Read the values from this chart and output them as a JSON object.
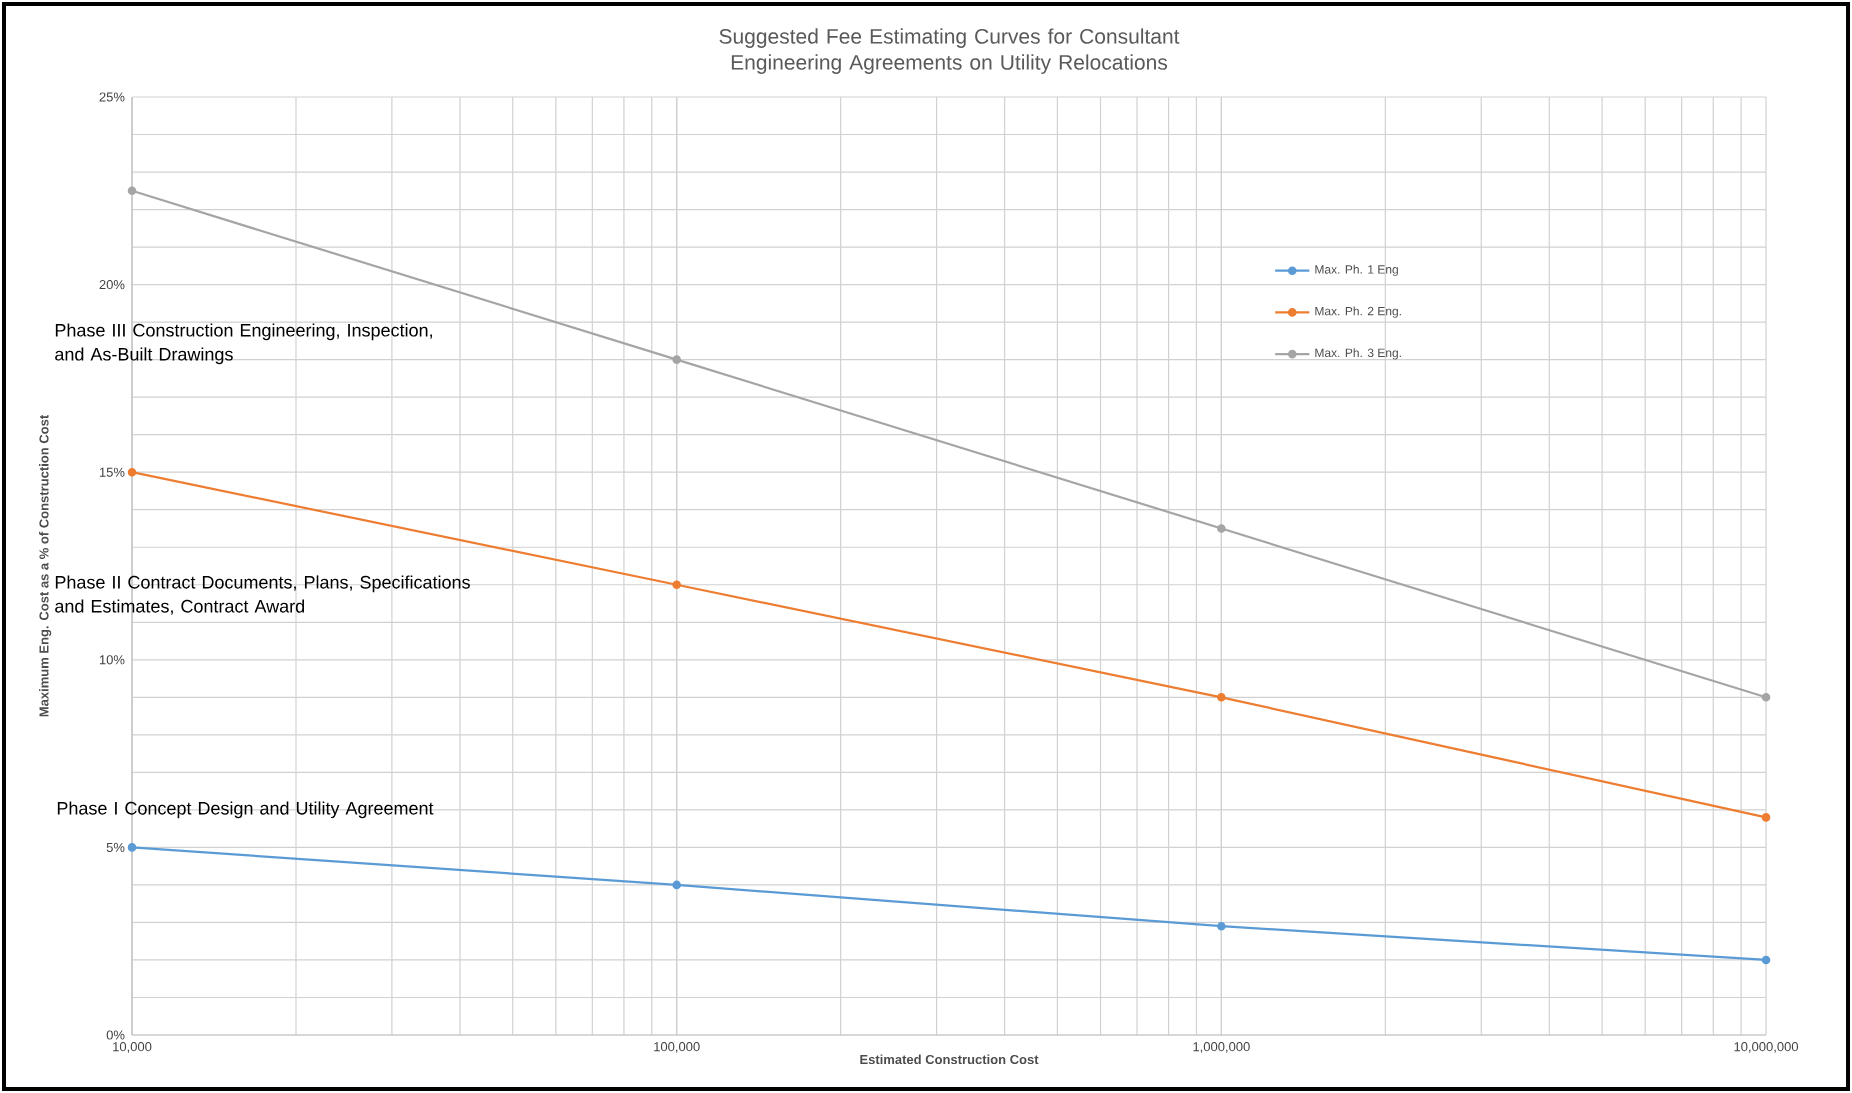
{
  "chart_data": {
    "type": "line",
    "title": "Suggested Fee Estimating Curves  for Consultant Engineering Agreements on Utility Relocations",
    "xlabel": "Estimated Construction Cost",
    "ylabel": "Maximum Eng. Cost as a % of Construction Cost",
    "x": [
      10000,
      100000,
      1000000,
      10000000
    ],
    "series": [
      {
        "name": "Max. Ph. 1 Eng",
        "color": "#5b9bd5",
        "values": [
          5.0,
          4.0,
          2.9,
          2.0
        ]
      },
      {
        "name": "Max. Ph. 2 Eng.",
        "color": "#ed7d31",
        "values": [
          15.0,
          12.0,
          9.0,
          5.8
        ]
      },
      {
        "name": "Max. Ph. 3 Eng.",
        "color": "#a5a5a5",
        "values": [
          22.5,
          18.0,
          13.5,
          9.0
        ]
      }
    ],
    "annotations": [
      "Phase III Construction Engineering, Inspection, and As-Built Drawings",
      "Phase II Contract Documents, Plans, Specifications and Estimates, Contract Award",
      "Phase I Concept Design and Utility Agreement"
    ],
    "log": "x",
    "xlim": [
      10000,
      10000000
    ],
    "xticks": [
      {
        "value": 10000,
        "label": "10,000"
      },
      {
        "value": 100000,
        "label": "100,000"
      },
      {
        "value": 1000000,
        "label": "1,000,000"
      },
      {
        "value": 10000000,
        "label": "10,000,000"
      }
    ],
    "ylim": [
      0,
      25
    ],
    "yticks": [
      {
        "value": 0,
        "label": "0%"
      },
      {
        "value": 5,
        "label": "5%"
      },
      {
        "value": 10,
        "label": "10%"
      },
      {
        "value": 15,
        "label": "15%"
      },
      {
        "value": 20,
        "label": "20%"
      },
      {
        "value": 25,
        "label": "25%"
      }
    ],
    "grid": true,
    "legend": "top right",
    "marker": "circle",
    "line_style": "solid"
  }
}
